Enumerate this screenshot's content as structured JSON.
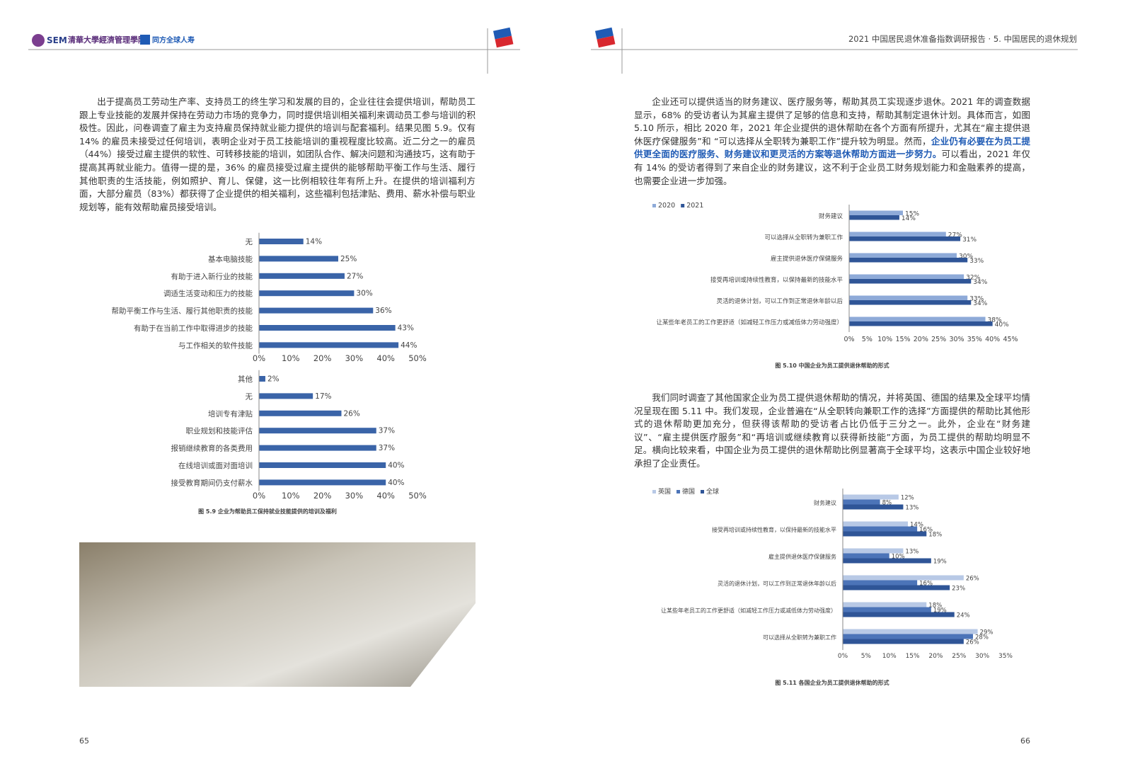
{
  "header": {
    "logo_sem": "SEM",
    "logo_school": "清華大學經濟管理學院",
    "logo_partner": "同方全球人寿",
    "title": "2021 中国居民退休准备指数调研报告 · 5. 中国居民的退休规划"
  },
  "left_page": {
    "paragraph": "出于提高员工劳动生产率、支持员工的终生学习和发展的目的，企业往往会提供培训，帮助员工跟上专业技能的发展并保持在劳动力市场的竞争力，同时提供培训相关福利来调动员工参与培训的积极性。因此，问卷调查了雇主为支持雇员保持就业能力提供的培训与配套福利。结果见图 5.9。仅有 14% 的雇员未接受过任何培训，表明企业对于员工技能培训的重视程度比较高。近二分之一的雇员（44%）接受过雇主提供的软性、可转移技能的培训，如团队合作、解决问题和沟通技巧，这有助于提高其再就业能力。值得一提的是，36% 的雇员接受过雇主提供的能够帮助平衡工作与生活、履行其他职责的生活技能，例如照护、育儿、保健，这一比例相较往年有所上升。在提供的培训福利方面，大部分雇员（83%）都获得了企业提供的相关福利，这些福利包括津贴、费用、薪水补偿与职业规划等，能有效帮助雇员接受培训。",
    "page_number": "65"
  },
  "right_page": {
    "paragraph_1": [
      "企业还可以提供适当的财务建议、医疗服务等，帮助其员工实现逐步退休。2021 年的调查数据显示，68% 的受访者认为其雇主提供了足够的信息和支持，帮助其制定退休计划。具体而言，如图 5.10 所示，相比 2020 年，2021 年企业提供的退休帮助在各个方面有所提升，尤其在“雇主提供退休医疗保健服务”和 “可以选择从全职转为兼职工作”提升较为明显。然而，",
      "企业仍有必要在为员工提供更全面的医疗服务、财务建议和更灵活的方案等退休帮助方面进一步努力。",
      "可以看出，2021 年仅有 14% 的受访者得到了来自企业的财务建议，这不利于企业员工财务规划能力和金融素养的提高，也需要企业进一步加强。"
    ],
    "paragraph_2": "我们同时调查了其他国家企业为员工提供退休帮助的情况，并将英国、德国的结果及全球平均情况呈现在图 5.11 中。我们发现，企业普遍在“从全职转向兼职工作的选择”方面提供的帮助比其他形式的退休帮助更加充分，但获得该帮助的受访者占比仍低于三分之一。此外，企业在“财务建议”、“雇主提供医疗服务”和“再培训或继续教育以获得新技能”方面，为员工提供的帮助均明显不足。横向比较来看，中国企业为员工提供的退休帮助比例显著高于全球平均，这表示中国企业较好地承担了企业责任。",
    "page_number": "66"
  },
  "charts": [
    {
      "type": "bar",
      "orientation": "horizontal",
      "categories": [
        "无",
        "基本电脑技能",
        "有助于进入新行业的技能",
        "调适生活变动和压力的技能",
        "帮助平衡工作与生活、履行其他职责的技能",
        "有助于在当前工作中取得进步的技能",
        "与工作相关的软件技能"
      ],
      "values": [
        14,
        25,
        27,
        30,
        36,
        43,
        44
      ],
      "value_labels": [
        "14%",
        "25%",
        "27%",
        "30%",
        "36%",
        "43%",
        "44%"
      ],
      "color": "#3a64a8",
      "xlim": [
        0,
        50
      ],
      "xticks": [
        {
          "value": 0,
          "label": "0%"
        },
        {
          "value": 10,
          "label": "10%"
        },
        {
          "value": 20,
          "label": "20%"
        },
        {
          "value": 30,
          "label": "30%"
        },
        {
          "value": 40,
          "label": "40%"
        },
        {
          "value": 50,
          "label": "50%"
        }
      ]
    },
    {
      "type": "bar",
      "orientation": "horizontal",
      "categories": [
        "其他",
        "无",
        "培训专有津贴",
        "职业规划和技能评估",
        "报销继续教育的各类费用",
        "在线培训或面对面培训",
        "接受教育期间仍支付薪水"
      ],
      "values": [
        2,
        17,
        26,
        37,
        37,
        40,
        40
      ],
      "value_labels": [
        "2%",
        "17%",
        "26%",
        "37%",
        "37%",
        "40%",
        "40%"
      ],
      "color": "#3a64a8",
      "xlim": [
        0,
        50
      ],
      "xticks": [
        {
          "value": 0,
          "label": "0%"
        },
        {
          "value": 10,
          "label": "10%"
        },
        {
          "value": 20,
          "label": "20%"
        },
        {
          "value": 30,
          "label": "30%"
        },
        {
          "value": 40,
          "label": "40%"
        },
        {
          "value": 50,
          "label": "50%"
        }
      ],
      "caption": "图 5.9 企业为帮助员工保持就业技能提供的培训及福利"
    },
    {
      "type": "bar",
      "orientation": "horizontal",
      "categories": [
        "财务建议",
        "可以选择从全职转为兼职工作",
        "雇主提供退休医疗保健服务",
        "接受再培训或持续性教育，以保持最新的技能水平",
        "灵活的退休计划，可以工作到正常退休年龄以后",
        "让某些年老员工的工作更舒适（如减轻工作压力或减低体力劳动强度）"
      ],
      "series": [
        {
          "name": "2020",
          "color": "#8eaad8",
          "values": [
            15,
            27,
            30,
            32,
            33,
            38
          ],
          "value_labels": [
            "15%",
            "27%",
            "30%",
            "32%",
            "33%",
            "38%"
          ]
        },
        {
          "name": "2021",
          "color": "#2f5597",
          "values": [
            14,
            31,
            33,
            34,
            34,
            40
          ],
          "value_labels": [
            "14%",
            "31%",
            "33%",
            "34%",
            "34%",
            "40%"
          ]
        }
      ],
      "xlim": [
        0,
        45
      ],
      "xticks": [
        {
          "value": 0,
          "label": "0%"
        },
        {
          "value": 5,
          "label": "5%"
        },
        {
          "value": 10,
          "label": "10%"
        },
        {
          "value": 15,
          "label": "15%"
        },
        {
          "value": 20,
          "label": "20%"
        },
        {
          "value": 25,
          "label": "25%"
        },
        {
          "value": 30,
          "label": "30%"
        },
        {
          "value": 35,
          "label": "35%"
        },
        {
          "value": 40,
          "label": "40%"
        },
        {
          "value": 45,
          "label": "45%"
        }
      ],
      "caption": "图 5.10 中国企业为员工提供退休帮助的形式"
    },
    {
      "type": "bar",
      "orientation": "horizontal",
      "categories": [
        "财务建议",
        "接受再培训或持续性教育，以保持最新的技能水平",
        "雇主提供退休医疗保健服务",
        "灵活的退休计划，可以工作到正常退休年龄以后",
        "让某些年老员工的工作更舒适（如减轻工作压力或减低体力劳动强度）",
        "可以选择从全职转为兼职工作"
      ],
      "series": [
        {
          "name": "英国",
          "color": "#b8c9e6",
          "values": [
            12,
            14,
            13,
            26,
            18,
            29
          ],
          "value_labels": [
            "12%",
            "14%",
            "13%",
            "26%",
            "18%",
            "29%"
          ]
        },
        {
          "name": "德国",
          "color": "#4c74b8",
          "values": [
            8,
            16,
            10,
            16,
            19,
            28
          ],
          "value_labels": [
            "8%",
            "16%",
            "10%",
            "16%",
            "19%",
            "28%"
          ]
        },
        {
          "name": "全球",
          "color": "#2f5597",
          "values": [
            13,
            18,
            19,
            23,
            24,
            26
          ],
          "value_labels": [
            "13%",
            "18%",
            "19%",
            "23%",
            "24%",
            "26%"
          ]
        }
      ],
      "xlim": [
        0,
        35
      ],
      "xticks": [
        {
          "value": 0,
          "label": "0%"
        },
        {
          "value": 5,
          "label": "5%"
        },
        {
          "value": 10,
          "label": "10%"
        },
        {
          "value": 15,
          "label": "15%"
        },
        {
          "value": 20,
          "label": "20%"
        },
        {
          "value": 25,
          "label": "25%"
        },
        {
          "value": 30,
          "label": "30%"
        },
        {
          "value": 35,
          "label": "35%"
        }
      ],
      "caption": "图 5.11 各国企业为员工提供退休帮助的形式"
    }
  ]
}
